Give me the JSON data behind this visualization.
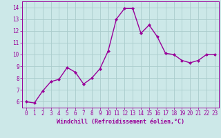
{
  "x": [
    0,
    1,
    2,
    3,
    4,
    5,
    6,
    7,
    8,
    9,
    10,
    11,
    12,
    13,
    14,
    15,
    16,
    17,
    18,
    19,
    20,
    21,
    22,
    23
  ],
  "y": [
    6.0,
    5.9,
    6.9,
    7.7,
    7.9,
    8.9,
    8.5,
    7.5,
    8.0,
    8.8,
    10.3,
    13.0,
    13.9,
    13.9,
    11.8,
    12.5,
    11.5,
    10.1,
    10.0,
    9.5,
    9.3,
    9.5,
    10.0,
    10.0
  ],
  "line_color": "#990099",
  "marker": "D",
  "marker_size": 2.0,
  "line_width": 1.0,
  "bg_color": "#cce8e8",
  "grid_color": "#aacccc",
  "xlabel": "Windchill (Refroidissement éolien,°C)",
  "ylim": [
    5.5,
    14.5
  ],
  "xlim": [
    -0.5,
    23.5
  ],
  "yticks": [
    6,
    7,
    8,
    9,
    10,
    11,
    12,
    13,
    14
  ],
  "xticks": [
    0,
    1,
    2,
    3,
    4,
    5,
    6,
    7,
    8,
    9,
    10,
    11,
    12,
    13,
    14,
    15,
    16,
    17,
    18,
    19,
    20,
    21,
    22,
    23
  ],
  "xlabel_fontsize": 6,
  "tick_fontsize": 5.5,
  "tick_color": "#990099",
  "label_color": "#990099"
}
